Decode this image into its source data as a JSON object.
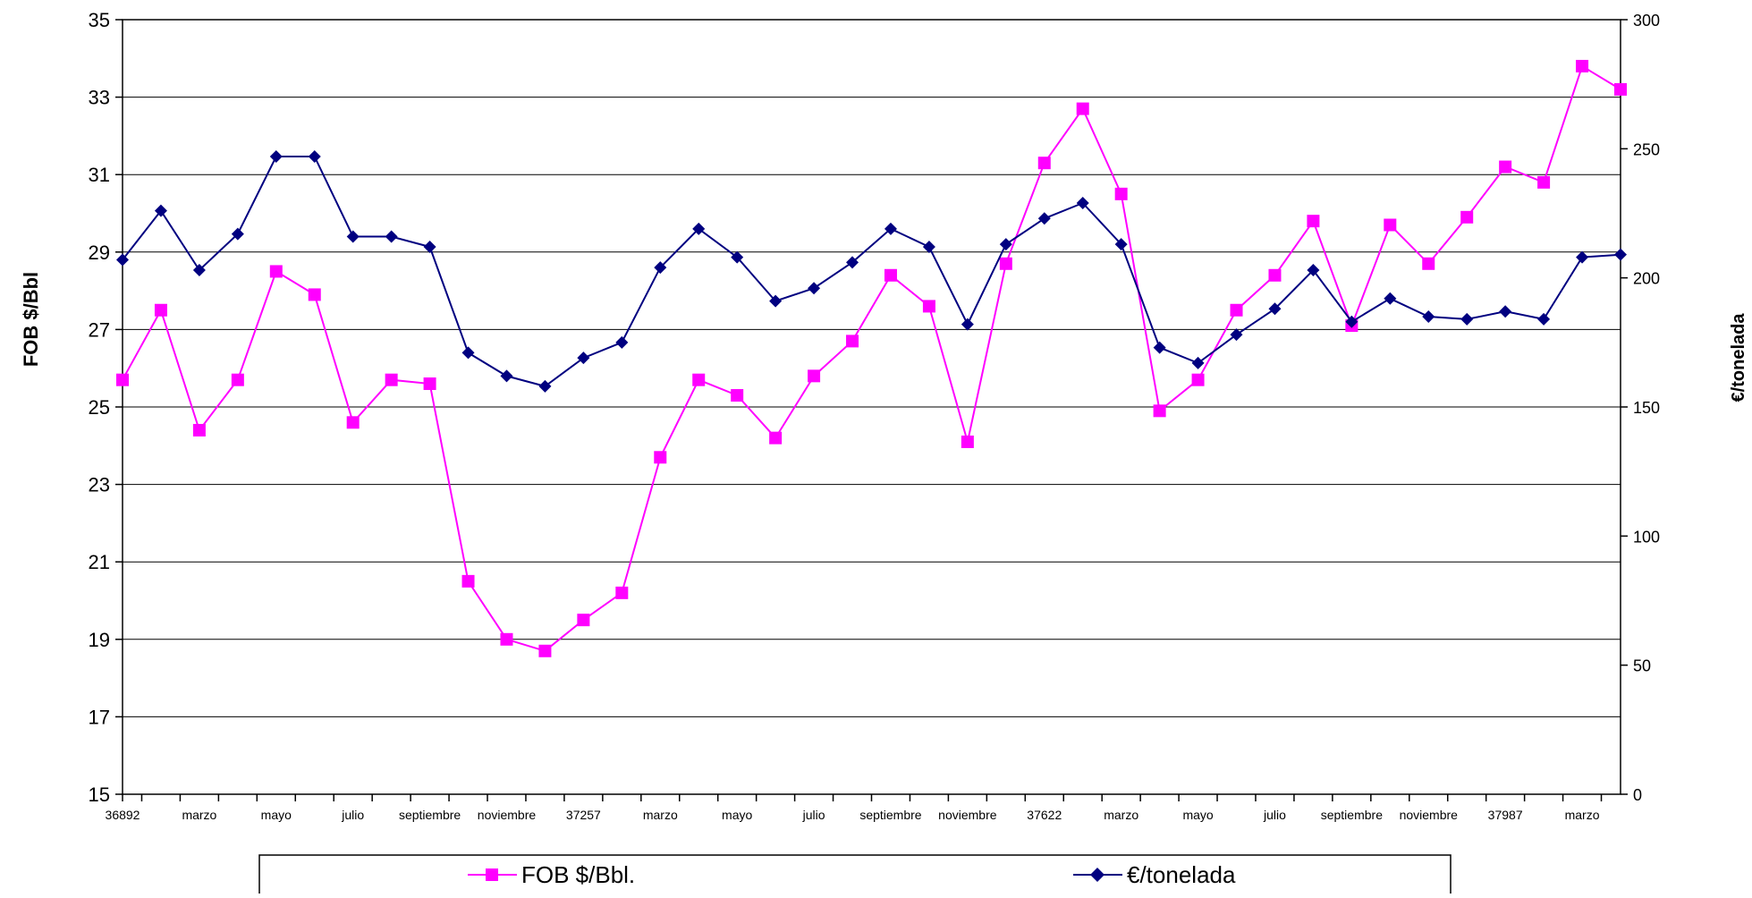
{
  "chart_data": {
    "type": "line",
    "title": "",
    "ylabel": "FOB $/Bbl",
    "y2label": "€/tonelada",
    "ylim": [
      15,
      35
    ],
    "y2lim": [
      0,
      300
    ],
    "yticks": [
      "15",
      "17",
      "19",
      "21",
      "23",
      "25",
      "27",
      "29",
      "31",
      "33",
      "35"
    ],
    "y2ticks": [
      "0",
      "50",
      "100",
      "150",
      "200",
      "250",
      "300"
    ],
    "x": [
      1,
      2,
      3,
      4,
      5,
      6,
      7,
      8,
      9,
      10,
      11,
      12,
      13,
      14,
      15,
      16,
      17,
      18,
      19,
      20,
      21,
      22,
      23,
      24,
      25,
      26,
      27,
      28,
      29,
      30,
      31,
      32,
      33,
      34,
      35,
      36,
      37,
      38,
      39,
      40
    ],
    "xticks": [
      {
        "x": 1,
        "label": "36892"
      },
      {
        "x": 3,
        "label": "marzo"
      },
      {
        "x": 5,
        "label": "mayo"
      },
      {
        "x": 7,
        "label": "julio"
      },
      {
        "x": 9,
        "label": "septiembre"
      },
      {
        "x": 11,
        "label": "noviembre"
      },
      {
        "x": 13,
        "label": "37257"
      },
      {
        "x": 15,
        "label": "marzo"
      },
      {
        "x": 17,
        "label": "mayo"
      },
      {
        "x": 19,
        "label": "julio"
      },
      {
        "x": 21,
        "label": "septiembre"
      },
      {
        "x": 23,
        "label": "noviembre"
      },
      {
        "x": 25,
        "label": "37622"
      },
      {
        "x": 27,
        "label": "marzo"
      },
      {
        "x": 29,
        "label": "mayo"
      },
      {
        "x": 31,
        "label": "julio"
      },
      {
        "x": 33,
        "label": "septiembre"
      },
      {
        "x": 35,
        "label": "noviembre"
      },
      {
        "x": 37,
        "label": "37987"
      },
      {
        "x": 39,
        "label": "marzo"
      }
    ],
    "grid": true,
    "legend_position": "bottom",
    "series": [
      {
        "name": "FOB $/Bbl.",
        "axis": "left",
        "color": "#ff00ff",
        "marker": "square",
        "values": [
          25.7,
          27.5,
          24.4,
          25.7,
          28.5,
          27.9,
          24.6,
          25.7,
          25.6,
          20.5,
          19.0,
          18.7,
          19.5,
          20.2,
          23.7,
          25.7,
          25.3,
          24.2,
          25.8,
          26.7,
          28.4,
          27.6,
          24.1,
          28.7,
          31.3,
          32.7,
          30.5,
          24.9,
          25.7,
          27.5,
          28.4,
          29.8,
          27.1,
          29.7,
          28.7,
          29.9,
          31.2,
          30.8,
          33.8,
          33.2
        ]
      },
      {
        "name": "€/tonelada",
        "axis": "right",
        "color": "#000080",
        "marker": "diamond",
        "values": [
          207,
          226,
          203,
          217,
          247,
          247,
          216,
          216,
          212,
          171,
          162,
          158,
          169,
          175,
          204,
          219,
          208,
          191,
          196,
          206,
          219,
          212,
          182,
          213,
          223,
          229,
          213,
          173,
          167,
          178,
          188,
          203,
          183,
          192,
          185,
          184,
          187,
          184,
          208,
          209
        ]
      }
    ]
  }
}
